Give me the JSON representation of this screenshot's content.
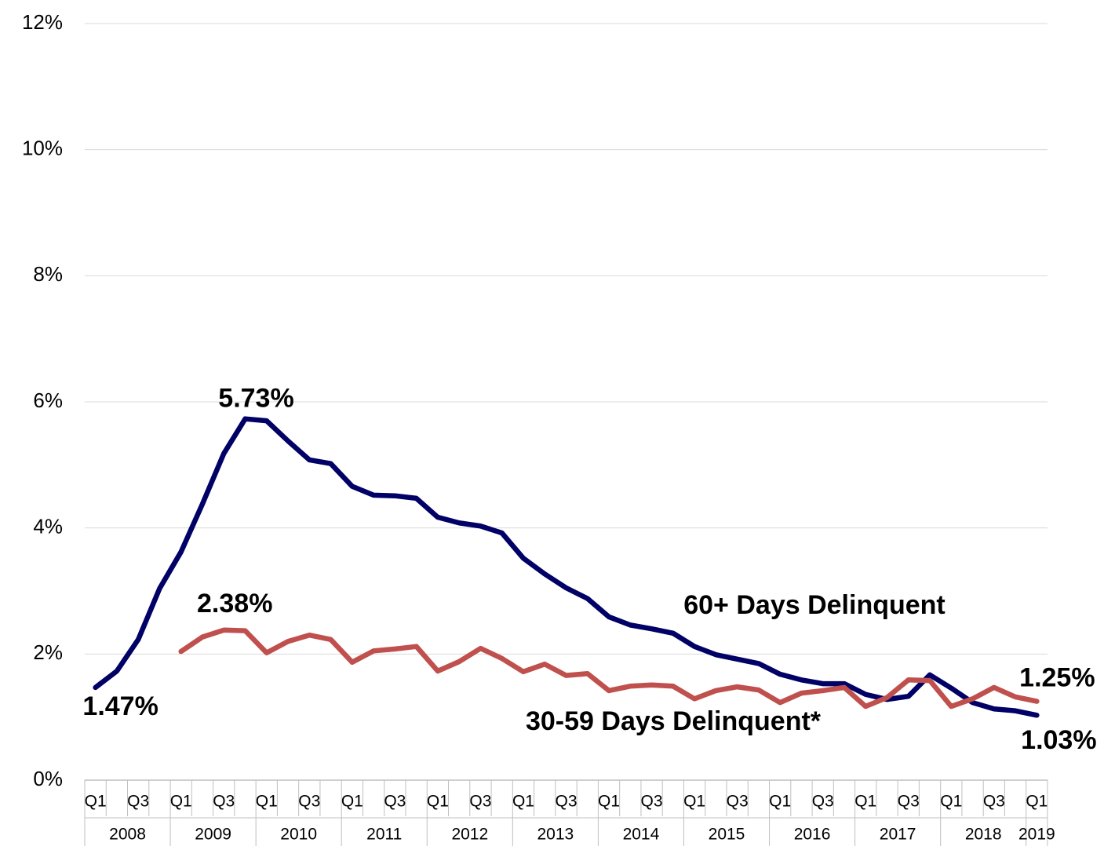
{
  "chart_data": {
    "type": "line",
    "categories": [
      "Q1",
      null,
      "Q3",
      null,
      "Q1",
      null,
      "Q3",
      null,
      "Q1",
      null,
      "Q3",
      null,
      "Q1",
      null,
      "Q3",
      null,
      "Q1",
      null,
      "Q3",
      null,
      "Q1",
      null,
      "Q3",
      null,
      "Q1",
      null,
      "Q3",
      null,
      "Q1",
      null,
      "Q3",
      null,
      "Q1",
      null,
      "Q3",
      null,
      "Q1",
      null,
      "Q3",
      null,
      "Q1",
      null,
      "Q3",
      null,
      "Q1"
    ],
    "years": [
      "2008",
      "2009",
      "2010",
      "2011",
      "2012",
      "2013",
      "2014",
      "2015",
      "2016",
      "2017",
      "2018",
      "2019"
    ],
    "series": [
      {
        "name": "60+ Days Delinquent",
        "color": "#000066",
        "values": [
          1.47,
          1.73,
          2.23,
          3.04,
          3.62,
          4.38,
          5.18,
          5.73,
          5.7,
          5.38,
          5.08,
          5.02,
          4.66,
          4.52,
          4.51,
          4.47,
          4.17,
          4.08,
          4.03,
          3.92,
          3.52,
          3.27,
          3.05,
          2.88,
          2.59,
          2.46,
          2.4,
          2.33,
          2.12,
          1.99,
          1.92,
          1.85,
          1.68,
          1.59,
          1.53,
          1.53,
          1.36,
          1.28,
          1.33,
          1.67,
          1.46,
          1.23,
          1.13,
          1.1,
          1.03
        ],
        "value_labels": [
          "1.47%",
          null,
          null,
          null,
          null,
          null,
          null,
          "5.73%",
          null,
          null,
          null,
          null,
          null,
          null,
          null,
          null,
          null,
          null,
          null,
          null,
          null,
          null,
          null,
          null,
          null,
          null,
          null,
          null,
          null,
          null,
          null,
          null,
          null,
          null,
          null,
          null,
          null,
          null,
          null,
          null,
          null,
          null,
          null,
          null,
          "1.03%"
        ]
      },
      {
        "name": "30-59 Days Delinquent*",
        "color": "#c0504d",
        "values": [
          null,
          null,
          null,
          null,
          2.04,
          2.27,
          2.38,
          2.37,
          2.02,
          2.2,
          2.3,
          2.23,
          1.87,
          2.05,
          2.08,
          2.12,
          1.73,
          1.88,
          2.09,
          1.93,
          1.72,
          1.84,
          1.66,
          1.69,
          1.42,
          1.49,
          1.51,
          1.49,
          1.29,
          1.42,
          1.48,
          1.43,
          1.23,
          1.38,
          1.42,
          1.47,
          1.17,
          1.31,
          1.59,
          1.58,
          1.17,
          1.29,
          1.47,
          1.32,
          1.25
        ],
        "value_labels": [
          null,
          null,
          null,
          null,
          null,
          null,
          "2.38%",
          null,
          null,
          null,
          null,
          null,
          null,
          null,
          null,
          null,
          null,
          null,
          null,
          null,
          null,
          null,
          null,
          null,
          null,
          null,
          null,
          null,
          null,
          null,
          null,
          null,
          null,
          null,
          null,
          null,
          null,
          null,
          null,
          null,
          null,
          null,
          null,
          null,
          "1.25%"
        ]
      }
    ],
    "ylim": [
      0,
      12
    ],
    "yticks": [
      {
        "value": 0,
        "label": "0%"
      },
      {
        "value": 2,
        "label": "2%"
      },
      {
        "value": 4,
        "label": "4%"
      },
      {
        "value": 6,
        "label": "6%"
      },
      {
        "value": 8,
        "label": "8%"
      },
      {
        "value": 10,
        "label": "10%"
      },
      {
        "value": 12,
        "label": "12%"
      }
    ],
    "grid": true
  }
}
